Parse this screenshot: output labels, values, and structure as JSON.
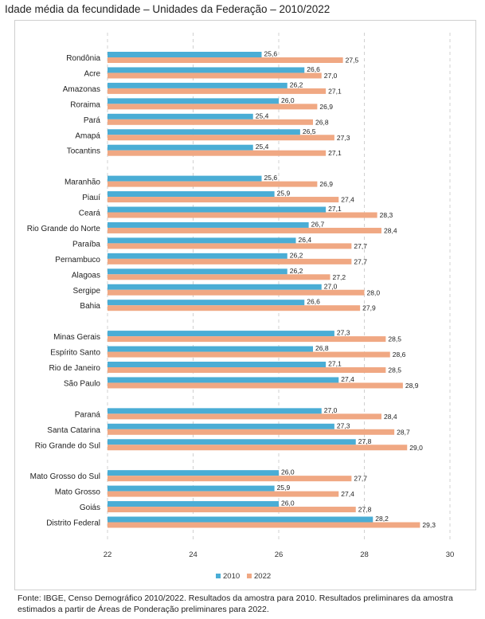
{
  "title": "Idade média da fecundidade – Unidades da Federação – 2010/2022",
  "source": "Fonte: IBGE, Censo Demográfico 2010/2022. Resultados da amostra para 2010. Resultados preliminares da amostra estimados a partir de Áreas de Ponderação preliminares para 2022.",
  "colors": {
    "s2010": "#4AADD5",
    "s2022": "#F0A883",
    "grid": "#d0d0d0"
  },
  "chart_data": {
    "type": "bar",
    "orientation": "horizontal",
    "groups": [
      [
        "Rondônia",
        "Acre",
        "Amazonas",
        "Roraima",
        "Pará",
        "Amapá",
        "Tocantins"
      ],
      [
        "Maranhão",
        "Piauí",
        "Ceará",
        "Rio Grande do Norte",
        "Paraíba",
        "Pernambuco",
        "Alagoas",
        "Sergipe",
        "Bahia"
      ],
      [
        "Minas Gerais",
        "Espírito Santo",
        "Rio de Janeiro",
        "São Paulo"
      ],
      [
        "Paraná",
        "Santa Catarina",
        "Rio Grande do Sul"
      ],
      [
        "Mato Grosso do Sul",
        "Mato Grosso",
        "Goiás",
        "Distrito Federal"
      ]
    ],
    "series": [
      {
        "name": "2010",
        "values": [
          25.6,
          26.6,
          26.2,
          26.0,
          25.4,
          26.5,
          25.4,
          25.6,
          25.9,
          27.1,
          26.7,
          26.4,
          26.2,
          26.2,
          27.0,
          26.6,
          27.3,
          26.8,
          27.1,
          27.4,
          27.0,
          27.3,
          27.8,
          26.0,
          25.9,
          26.0,
          28.2
        ],
        "labels": [
          "25,6",
          "26,6",
          "26,2",
          "26,0",
          "25,4",
          "26,5",
          "25,4",
          "25,6",
          "25,9",
          "27,1",
          "26,7",
          "26,4",
          "26,2",
          "26,2",
          "27,0",
          "26,6",
          "27,3",
          "26,8",
          "27,1",
          "27,4",
          "27,0",
          "27,3",
          "27,8",
          "26,0",
          "25,9",
          "26,0",
          "28,2"
        ]
      },
      {
        "name": "2022",
        "values": [
          27.5,
          27.0,
          27.1,
          26.9,
          26.8,
          27.3,
          27.1,
          26.9,
          27.4,
          28.3,
          28.4,
          27.7,
          27.7,
          27.2,
          28.0,
          27.9,
          28.5,
          28.6,
          28.5,
          28.9,
          28.4,
          28.7,
          29.0,
          27.7,
          27.4,
          27.8,
          29.3
        ],
        "labels": [
          "27,5",
          "27,0",
          "27,1",
          "26,9",
          "26,8",
          "27,3",
          "27,1",
          "26,9",
          "27,4",
          "28,3",
          "28,4",
          "27,7",
          "27,7",
          "27,2",
          "28,0",
          "27,9",
          "28,5",
          "28,6",
          "28,5",
          "28,9",
          "28,4",
          "28,7",
          "29,0",
          "27,7",
          "27,4",
          "27,8",
          "29,3"
        ]
      }
    ],
    "xlim": [
      22,
      30
    ],
    "xticks": [
      "22",
      "24",
      "26",
      "28",
      "30"
    ],
    "grid": "vertical dashed",
    "legend": "bottom"
  }
}
